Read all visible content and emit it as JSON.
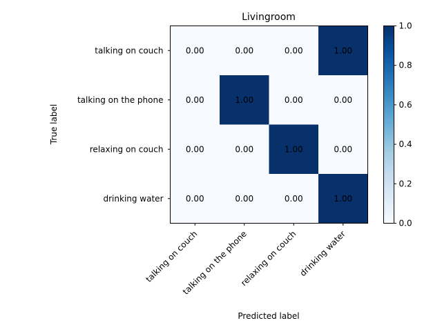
{
  "chart_data": {
    "type": "heatmap",
    "title": "Livingroom",
    "xlabel": "Predicted label",
    "ylabel": "True label",
    "x_categories": [
      "talking on couch",
      "talking on the phone",
      "relaxing on couch",
      "drinking water"
    ],
    "y_categories": [
      "talking on couch",
      "talking on the phone",
      "relaxing on couch",
      "drinking water"
    ],
    "values": [
      [
        0.0,
        0.0,
        0.0,
        1.0
      ],
      [
        0.0,
        1.0,
        0.0,
        0.0
      ],
      [
        0.0,
        0.0,
        1.0,
        0.0
      ],
      [
        0.0,
        0.0,
        0.0,
        1.0
      ]
    ],
    "value_format": "0.00",
    "colormap": "Blues",
    "colormap_low": "#f7fbff",
    "colormap_high": "#08306b",
    "text_color_dark_cell": "#ffffff",
    "text_color_light_cell": "#000000",
    "colorbar": {
      "range": [
        0.0,
        1.0
      ],
      "ticks": [
        "0.0",
        "0.2",
        "0.4",
        "0.6",
        "0.8",
        "1.0"
      ]
    }
  }
}
